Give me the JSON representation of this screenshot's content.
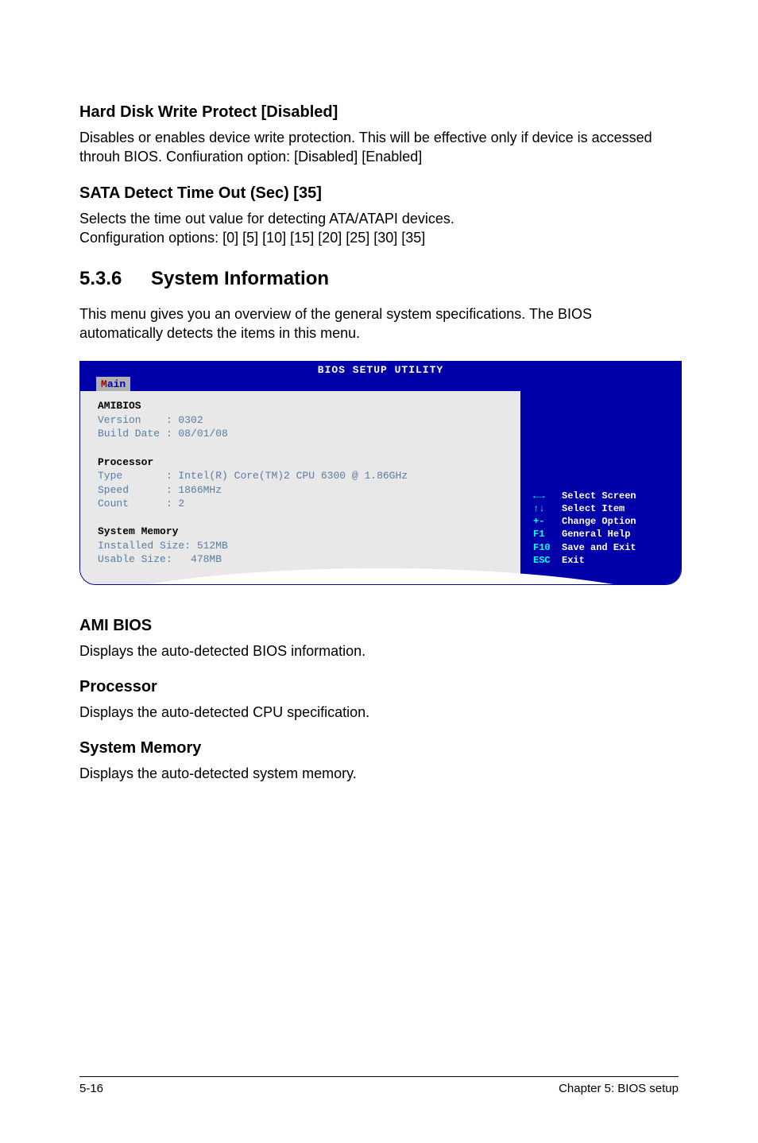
{
  "sections": {
    "hdwp": {
      "title": "Hard Disk Write Protect [Disabled]",
      "body": "Disables or enables device write protection. This will be effective only if device is accessed throuh BIOS. Confiuration option: [Disabled] [Enabled]"
    },
    "sata": {
      "title": "SATA Detect Time Out (Sec) [35]",
      "body1": "Selects the time out value for detecting ATA/ATAPI devices.",
      "body2": "Configuration options: [0] [5] [10] [15] [20] [25] [30] [35]"
    },
    "sysinfo": {
      "num": "5.3.6",
      "title": "System Information",
      "body": "This menu gives you an overview of the general system specifications. The BIOS automatically detects the items in this menu."
    },
    "ami": {
      "title": "AMI BIOS",
      "body": "Displays the auto-detected BIOS information."
    },
    "proc": {
      "title": "Processor",
      "body": "Displays the auto-detected CPU specification."
    },
    "mem": {
      "title": "System Memory",
      "body": "Displays the auto-detected system memory."
    }
  },
  "bios": {
    "title": "BIOS SETUP UTILITY",
    "tab_accel": "M",
    "tab_rest": "ain",
    "left": {
      "amibios_hdr": "AMIBIOS",
      "version_lbl": "Version    :",
      "version_val": " 0302",
      "build_lbl": "Build Date :",
      "build_val": " 08/01/08",
      "proc_hdr": "Processor",
      "type_lbl": "Type       :",
      "type_val": " Intel(R) Core(TM)2 CPU 6300 @ 1.86GHz",
      "speed_lbl": "Speed      :",
      "speed_val": " 1866MHz",
      "count_lbl": "Count      :",
      "count_val": " 2",
      "mem_hdr": "System Memory",
      "inst_lbl": "Installed Size:",
      "inst_val": " 512MB",
      "usable_lbl": "Usable Size:  ",
      "usable_val": " 478MB"
    },
    "right": {
      "k1": "←→   ",
      "v1": "Select Screen",
      "k2": "↑↓   ",
      "v2": "Select Item",
      "k3": "+-   ",
      "v3": "Change Option",
      "k4": "F1   ",
      "v4": "General Help",
      "k5": "F10  ",
      "v5": "Save and Exit",
      "k6": "ESC  ",
      "v6": "Exit"
    },
    "colors": {
      "bios_bg": "#0000a8",
      "panel_bg": "#e8e8e8",
      "dim_text": "#5a7ca0",
      "cyan": "#00ffff"
    }
  },
  "footer": {
    "left": "5-16",
    "right": "Chapter 5: BIOS setup"
  }
}
